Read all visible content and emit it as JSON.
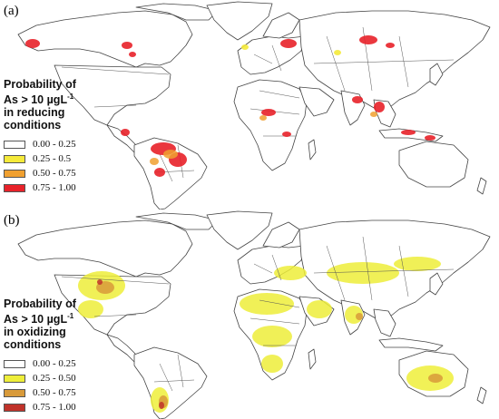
{
  "panels": [
    {
      "letter": "(a)",
      "legend": {
        "title_l1": "Probability of",
        "title_l2_pre": "As > 10 ",
        "title_l2_unit": "µgL",
        "title_l2_sup": "-1",
        "title_l3": "in reducing",
        "title_l4": "conditions",
        "classes": [
          {
            "range": "0.00 - 0.25",
            "color": "#ffffff"
          },
          {
            "range": "0.25 - 0.5",
            "color": "#f5ea3a"
          },
          {
            "range": "0.50  - 0.75",
            "color": "#f0a030"
          },
          {
            "range": "0.75 - 1.00",
            "color": "#e8222a"
          }
        ]
      }
    },
    {
      "letter": "(b)",
      "legend": {
        "title_l1": "Probability of",
        "title_l2_pre": "As > 10 ",
        "title_l2_unit": "µgL",
        "title_l2_sup": "-1",
        "title_l3": "in oxidizing",
        "title_l4": "conditions",
        "classes": [
          {
            "range": "0.00 - 0.25",
            "color": "#ffffff"
          },
          {
            "range": "0.25 - 0.50",
            "color": "#eeee3a"
          },
          {
            "range": "0.50 - 0.75",
            "color": "#d89a3a"
          },
          {
            "range": "0.75 - 1.00",
            "color": "#c0322a"
          }
        ]
      }
    }
  ]
}
